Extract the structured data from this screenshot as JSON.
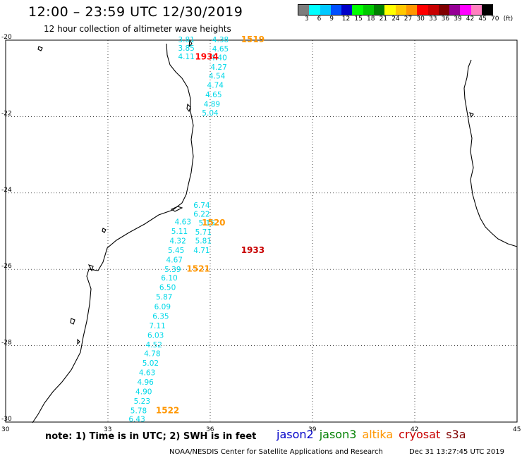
{
  "header": {
    "title": "12:00 – 23:59 UTC 12/30/2019",
    "subtitle": "12 hour collection of altimeter wave heights"
  },
  "colorbar": {
    "colors": [
      "#7d7d7d",
      "#00ffff",
      "#00c8ff",
      "#0050ff",
      "#0000c8",
      "#00ff00",
      "#00c800",
      "#008000",
      "#ffff00",
      "#ffc800",
      "#ff9600",
      "#ff0000",
      "#c80000",
      "#800000",
      "#960096",
      "#ff00ff",
      "#ff80c0",
      "#000000"
    ],
    "labels": [
      "3",
      "6",
      "9",
      "12",
      "15",
      "18",
      "21",
      "24",
      "27",
      "30",
      "33",
      "36",
      "39",
      "42",
      "45",
      "70",
      "(ft)"
    ]
  },
  "map": {
    "lat_labels": [
      "-20",
      "-22",
      "-24",
      "-26",
      "-28",
      "-30"
    ],
    "lon_labels": [
      "30",
      "33",
      "36",
      "39",
      "42",
      "45"
    ],
    "lat_values": [
      -20,
      -22,
      -24,
      -26,
      -28,
      -30
    ],
    "lon_values": [
      30,
      33,
      36,
      39,
      42,
      45
    ],
    "swh_points": [
      {
        "v": "3.81",
        "lon": 35.3,
        "lat": -19.98
      },
      {
        "v": "3.85",
        "lon": 35.3,
        "lat": -20.2
      },
      {
        "v": "4.11",
        "lon": 35.3,
        "lat": -20.42
      },
      {
        "v": "4.38",
        "lon": 36.3,
        "lat": -19.98
      },
      {
        "v": "4.65",
        "lon": 36.3,
        "lat": -20.22
      },
      {
        "v": "4.40",
        "lon": 36.25,
        "lat": -20.45
      },
      {
        "v": "4.27",
        "lon": 36.25,
        "lat": -20.7
      },
      {
        "v": "4.54",
        "lon": 36.2,
        "lat": -20.93
      },
      {
        "v": "4.74",
        "lon": 36.15,
        "lat": -21.17
      },
      {
        "v": "4.65",
        "lon": 36.1,
        "lat": -21.42
      },
      {
        "v": "4.89",
        "lon": 36.05,
        "lat": -21.67
      },
      {
        "v": "5.04",
        "lon": 36.0,
        "lat": -21.9
      },
      {
        "v": "6.74",
        "lon": 35.75,
        "lat": -24.32
      },
      {
        "v": "6.22",
        "lon": 35.75,
        "lat": -24.55
      },
      {
        "v": "4.63",
        "lon": 35.2,
        "lat": -24.75
      },
      {
        "v": "5.15",
        "lon": 35.9,
        "lat": -24.78
      },
      {
        "v": "5.11",
        "lon": 35.1,
        "lat": -25.0
      },
      {
        "v": "5.71",
        "lon": 35.8,
        "lat": -25.02
      },
      {
        "v": "4.32",
        "lon": 35.05,
        "lat": -25.25
      },
      {
        "v": "5.81",
        "lon": 35.8,
        "lat": -25.25
      },
      {
        "v": "5.45",
        "lon": 35.0,
        "lat": -25.5
      },
      {
        "v": "4.71",
        "lon": 35.75,
        "lat": -25.5
      },
      {
        "v": "4.67",
        "lon": 34.95,
        "lat": -25.75
      },
      {
        "v": "5.39",
        "lon": 34.9,
        "lat": -26.0
      },
      {
        "v": "6.10",
        "lon": 34.8,
        "lat": -26.22
      },
      {
        "v": "6.50",
        "lon": 34.75,
        "lat": -26.47
      },
      {
        "v": "5.87",
        "lon": 34.65,
        "lat": -26.72
      },
      {
        "v": "6.09",
        "lon": 34.6,
        "lat": -26.97
      },
      {
        "v": "6.35",
        "lon": 34.55,
        "lat": -27.22
      },
      {
        "v": "7.11",
        "lon": 34.45,
        "lat": -27.47
      },
      {
        "v": "6.03",
        "lon": 34.4,
        "lat": -27.72
      },
      {
        "v": "4.52",
        "lon": 34.35,
        "lat": -27.97
      },
      {
        "v": "4.78",
        "lon": 34.3,
        "lat": -28.2
      },
      {
        "v": "5.02",
        "lon": 34.25,
        "lat": -28.45
      },
      {
        "v": "4.63",
        "lon": 34.15,
        "lat": -28.7
      },
      {
        "v": "4.96",
        "lon": 34.1,
        "lat": -28.95
      },
      {
        "v": "4.90",
        "lon": 34.05,
        "lat": -29.2
      },
      {
        "v": "5.23",
        "lon": 34.0,
        "lat": -29.45
      },
      {
        "v": "5.78",
        "lon": 33.9,
        "lat": -29.7
      },
      {
        "v": "6.43",
        "lon": 33.85,
        "lat": -29.92
      }
    ],
    "pass_labels": [
      {
        "t": "1519",
        "lon": 37.25,
        "lat": -19.98,
        "c": "#ff9600"
      },
      {
        "t": "1934",
        "lon": 35.9,
        "lat": -20.43,
        "c": "#ff0000"
      },
      {
        "t": "1520",
        "lon": 36.1,
        "lat": -24.78,
        "c": "#ff9600"
      },
      {
        "t": "1933",
        "lon": 37.25,
        "lat": -25.5,
        "c": "#c80000"
      },
      {
        "t": "1521",
        "lon": 35.65,
        "lat": -25.99,
        "c": "#ff9600"
      },
      {
        "t": "1522",
        "lon": 34.75,
        "lat": -29.7,
        "c": "#ff9600"
      }
    ]
  },
  "footer": {
    "note": "note: 1) Time is in UTC; 2) SWH is in feet",
    "satellites": [
      {
        "name": "jason2",
        "color": "#0000c8"
      },
      {
        "name": "jason3",
        "color": "#008000"
      },
      {
        "name": "altika",
        "color": "#ff9600"
      },
      {
        "name": "cryosat",
        "color": "#c80000"
      },
      {
        "name": "s3a",
        "color": "#800000"
      }
    ],
    "credit": "NOAA/NESDIS Center for Satellite Applications and Research",
    "timestamp": "Dec 31 13:27:45 UTC 2019"
  }
}
